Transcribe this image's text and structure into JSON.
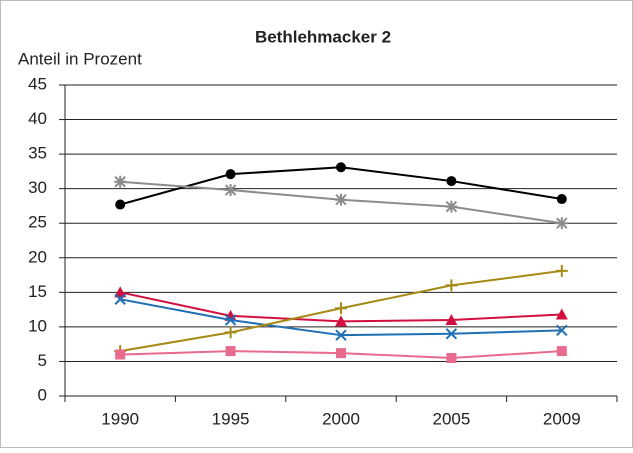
{
  "chart_data": {
    "type": "line",
    "title": "Bethlehmacker 2",
    "y_label": "Anteil in Prozent",
    "categories": [
      "1990",
      "1995",
      "2000",
      "2005",
      "2009"
    ],
    "series": [
      {
        "color": "#000000",
        "marker": "circle",
        "values": [
          27.7,
          32.1,
          33.1,
          31.1,
          28.5
        ]
      },
      {
        "color": "#8c8c8c",
        "marker": "asterisk",
        "values": [
          31.0,
          29.8,
          28.4,
          27.4,
          25.0
        ]
      },
      {
        "color": "#d1103f",
        "marker": "triangle",
        "values": [
          15.0,
          11.6,
          10.8,
          11.0,
          11.8
        ]
      },
      {
        "color": "#1f6fb4",
        "marker": "x",
        "values": [
          14.0,
          11.0,
          8.8,
          9.0,
          9.5
        ]
      },
      {
        "color": "#a58a16",
        "marker": "plus",
        "values": [
          6.5,
          9.2,
          12.7,
          16.0,
          18.1
        ]
      },
      {
        "color": "#e86a8e",
        "marker": "square",
        "values": [
          6.0,
          6.5,
          6.2,
          5.5,
          6.5
        ]
      }
    ],
    "ylim": [
      0,
      45
    ],
    "yticks": [
      0,
      5,
      10,
      15,
      20,
      25,
      30,
      35,
      40,
      45
    ],
    "grid": true
  }
}
